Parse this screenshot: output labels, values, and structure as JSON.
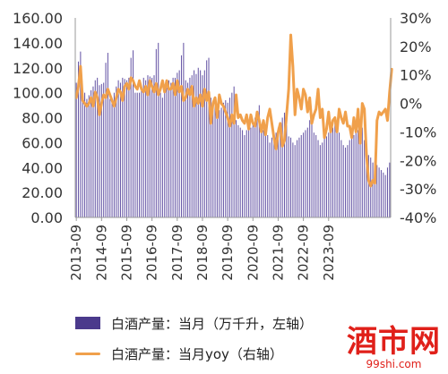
{
  "chart_data": {
    "type": "bar+line",
    "left_axis": {
      "ticks": [
        "160.00",
        "140.00",
        "120.00",
        "100.00",
        "80.00",
        "60.00",
        "40.00",
        "20.00",
        "0.00"
      ],
      "ylim": [
        0,
        160
      ]
    },
    "right_axis": {
      "ticks": [
        "30%",
        "20%",
        "10%",
        "0%",
        "-10%",
        "-20%",
        "-30%",
        "-40%"
      ],
      "ylim": [
        -40,
        30
      ]
    },
    "x_ticks": [
      "2013-09",
      "2014-09",
      "2015-09",
      "2016-09",
      "2017-09",
      "2018-09",
      "2019-09",
      "2020-09",
      "2021-09",
      "2022-09",
      "2023-09"
    ],
    "grid": false,
    "series": [
      {
        "name": "白酒产量：当月（万千升，左轴）",
        "type": "bar",
        "axis": "left",
        "color": "#6a5aa8",
        "values": [
          108,
          125,
          133,
          100,
          100,
          95,
          98,
          102,
          105,
          110,
          112,
          106,
          107,
          108,
          124,
          132,
          95,
          95,
          100,
          105,
          110,
          108,
          112,
          111,
          110,
          112,
          128,
          134,
          100,
          100,
          100,
          102,
          112,
          110,
          114,
          113,
          112,
          114,
          135,
          140,
          100,
          96,
          102,
          104,
          110,
          108,
          112,
          112,
          116,
          118,
          130,
          140,
          110,
          108,
          112,
          114,
          118,
          115,
          120,
          118,
          114,
          118,
          126,
          128,
          96,
          92,
          90,
          90,
          86,
          88,
          92,
          94,
          92,
          96,
          100,
          105,
          78,
          74,
          72,
          70,
          66,
          70,
          72,
          72,
          76,
          80,
          84,
          90,
          74,
          70,
          68,
          66,
          60,
          64,
          66,
          68,
          72,
          75,
          80,
          84,
          74,
          65,
          64,
          60,
          58,
          62,
          64,
          66,
          68,
          70,
          72,
          78,
          80,
          68,
          66,
          62,
          58,
          60,
          64,
          65,
          68,
          70,
          72,
          76,
          72,
          68,
          62,
          58,
          56,
          58,
          62,
          64,
          66,
          68,
          70,
          74,
          72,
          62,
          58,
          50,
          48,
          44,
          45,
          42,
          40,
          38,
          36,
          34,
          40,
          44
        ]
      },
      {
        "name": "白酒产量：当月yoy（右轴）",
        "type": "line",
        "axis": "right",
        "color": "#f0a04b",
        "values": [
          2,
          6,
          13,
          1,
          0,
          -1,
          0,
          2,
          -1,
          4,
          2,
          -4,
          0,
          3,
          2,
          5,
          3,
          1,
          -1,
          2,
          5,
          4,
          1,
          6,
          7,
          5,
          9,
          8,
          6,
          5,
          8,
          5,
          4,
          6,
          3,
          8,
          6,
          4,
          7,
          3,
          5,
          8,
          4,
          8,
          5,
          5,
          7,
          3,
          8,
          4,
          6,
          1,
          2,
          5,
          3,
          6,
          -1,
          2,
          0,
          3,
          -1,
          5,
          1,
          4,
          -7,
          0,
          2,
          -5,
          3,
          0,
          -1,
          -3,
          -5,
          -8,
          -4,
          -7,
          3,
          -5,
          -4,
          -6,
          -7,
          -4,
          -9,
          -4,
          -7,
          -8,
          -3,
          -6,
          -10,
          -6,
          -11,
          -5,
          -2,
          -7,
          -12,
          -16,
          -10,
          -7,
          -15,
          -13,
          -4,
          5,
          24,
          13,
          -4,
          5,
          2,
          -2,
          5,
          3,
          -3,
          2,
          -7,
          -4,
          -2,
          5,
          -5,
          -2,
          -12,
          -9,
          -3,
          -10,
          -6,
          -5,
          -10,
          -2,
          -5,
          -7,
          -3,
          -8,
          -8,
          -12,
          -5,
          -10,
          -2,
          -14,
          0,
          -2,
          -18,
          -27,
          -29,
          -27,
          -28,
          -6,
          -3,
          -4,
          -3,
          -2,
          -6,
          4,
          12
        ]
      }
    ]
  },
  "legend": {
    "bar_label": "白酒产量：当月（万千升，左轴）",
    "line_label": "白酒产量：当月yoy（右轴）"
  },
  "watermark": {
    "main": "酒市网",
    "sub": "99shi.com"
  },
  "colors": {
    "bar": "#6a5aa8",
    "line": "#f0a04b",
    "axis": "#9a9a9a",
    "text": "#333333",
    "watermark": "#e0201a"
  }
}
